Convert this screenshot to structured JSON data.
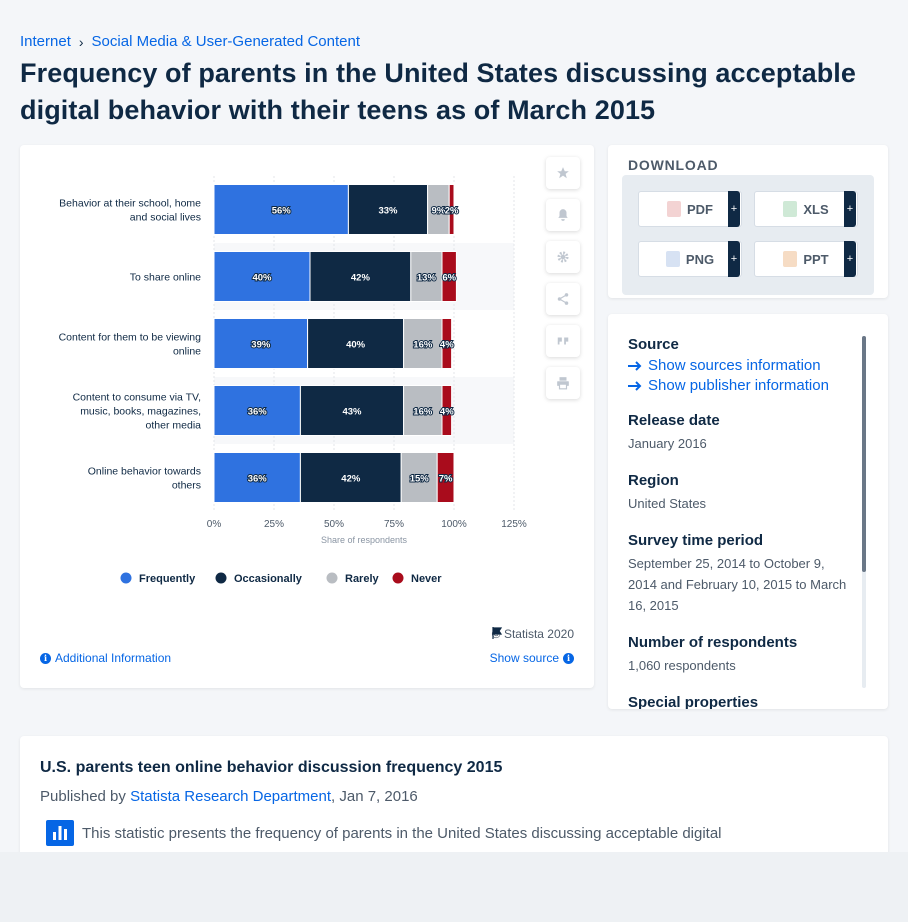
{
  "breadcrumb": {
    "items": [
      "Internet",
      "Social Media & User-Generated Content"
    ]
  },
  "page_title": "Frequency of parents in the United States discussing acceptable digital behavior with their teens as of March 2015",
  "chart_data": {
    "type": "bar",
    "orientation": "horizontal",
    "stacked": true,
    "categories": [
      [
        "Behavior at their school, home",
        "and social lives"
      ],
      [
        "To share online"
      ],
      [
        "Content for them to be viewing",
        "online"
      ],
      [
        "Content to consume via TV,",
        "music, books, magazines,",
        "other media"
      ],
      [
        "Online behavior towards",
        "others"
      ]
    ],
    "series": [
      {
        "name": "Frequently",
        "color": "#2f72e0",
        "values": [
          56,
          40,
          39,
          36,
          36
        ]
      },
      {
        "name": "Occasionally",
        "color": "#0f2944",
        "values": [
          33,
          42,
          40,
          43,
          42
        ]
      },
      {
        "name": "Rarely",
        "color": "#b9bdc2",
        "values": [
          9,
          13,
          16,
          16,
          15
        ]
      },
      {
        "name": "Never",
        "color": "#a90c1c",
        "values": [
          2,
          6,
          4,
          4,
          7
        ]
      }
    ],
    "xlabel": "Share of respondents",
    "xticks": [
      "0%",
      "25%",
      "50%",
      "75%",
      "100%",
      "125%"
    ],
    "xlim": [
      0,
      125
    ],
    "grid": true,
    "legend_position": "bottom"
  },
  "tools": [
    "star-icon",
    "bell-icon",
    "gear-icon",
    "share-icon",
    "quote-icon",
    "print-icon"
  ],
  "copyright": "© Statista 2020",
  "additional_info": "Additional Information",
  "show_source": "Show source",
  "download": {
    "title": "DOWNLOAD",
    "buttons": [
      {
        "label": "PDF",
        "plus": "+",
        "color": "#e04b4b"
      },
      {
        "label": "XLS",
        "plus": "+",
        "color": "#3aa757"
      },
      {
        "label": "PNG",
        "plus": "+",
        "color": "#6b8fc8"
      },
      {
        "label": "PPT",
        "plus": "+",
        "color": "#e8832a"
      }
    ]
  },
  "meta": {
    "source_h": "Source",
    "show_sources": "Show sources information",
    "show_publisher": "Show publisher information",
    "release_h": "Release date",
    "release_v": "January 2016",
    "region_h": "Region",
    "region_v": "United States",
    "survey_h": "Survey time period",
    "survey_v": "September 25, 2014 to October 9, 2014 and February 10, 2015 to March 16, 2015",
    "respondents_h": "Number of respondents",
    "respondents_v": "1,060 respondents",
    "special_h": "Special properties"
  },
  "description": {
    "title": "U.S. parents teen online behavior discussion frequency 2015",
    "published_prefix": "Published by",
    "publisher": "Statista Research Department",
    "date": ", Jan 7, 2016",
    "text": "This statistic presents the frequency of parents in the United States discussing acceptable digital"
  }
}
